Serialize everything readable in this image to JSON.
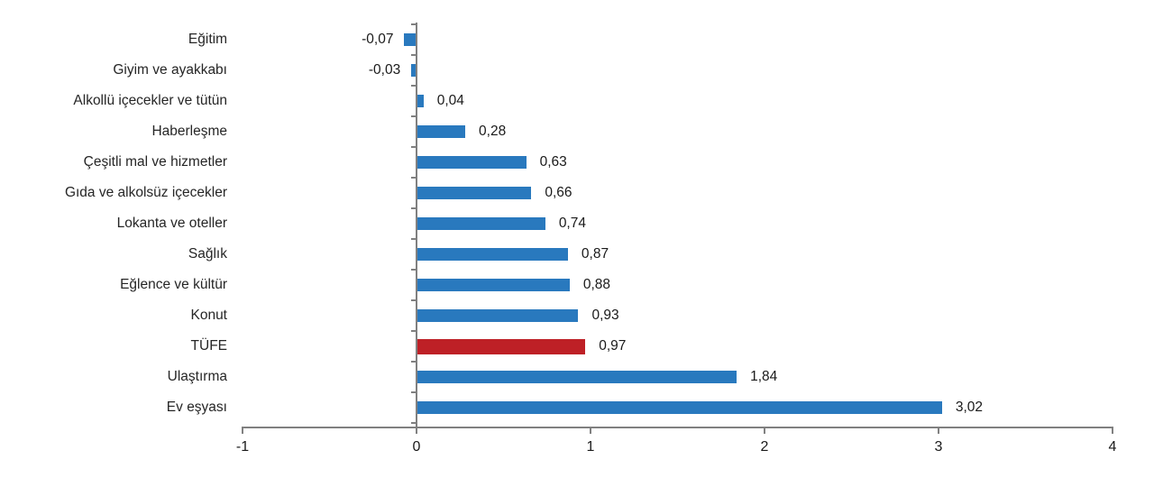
{
  "chart_data": {
    "type": "bar",
    "orientation": "horizontal",
    "title": "",
    "categories": [
      "Eğitim",
      "Giyim ve ayakkabı",
      "Alkollü içecekler ve tütün",
      "Haberleşme",
      "Çeşitli mal ve hizmetler",
      "Gıda ve alkolsüz içecekler",
      "Lokanta ve oteller",
      "Sağlık",
      "Eğlence ve kültür",
      "Konut",
      "TÜFE",
      "Ulaştırma",
      "Ev eşyası"
    ],
    "values": [
      -0.07,
      -0.03,
      0.04,
      0.28,
      0.63,
      0.66,
      0.74,
      0.87,
      0.88,
      0.93,
      0.97,
      1.84,
      3.02
    ],
    "value_labels": [
      "-0,07",
      "-0,03",
      "0,04",
      "0,28",
      "0,63",
      "0,66",
      "0,74",
      "0,87",
      "0,88",
      "0,93",
      "0,97",
      "1,84",
      "3,02"
    ],
    "highlight_category": "TÜFE",
    "highlight_index": 10,
    "x_ticks": [
      "-1",
      "0",
      "1",
      "2",
      "3",
      "4"
    ],
    "x_tick_values": [
      -1,
      0,
      1,
      2,
      3,
      4
    ],
    "xlim": [
      -1,
      4
    ],
    "grid": false,
    "legend": null,
    "colors": {
      "bar": "#2979BE",
      "highlight": "#BE2026",
      "axis": "#808080",
      "text": "#262626"
    }
  }
}
